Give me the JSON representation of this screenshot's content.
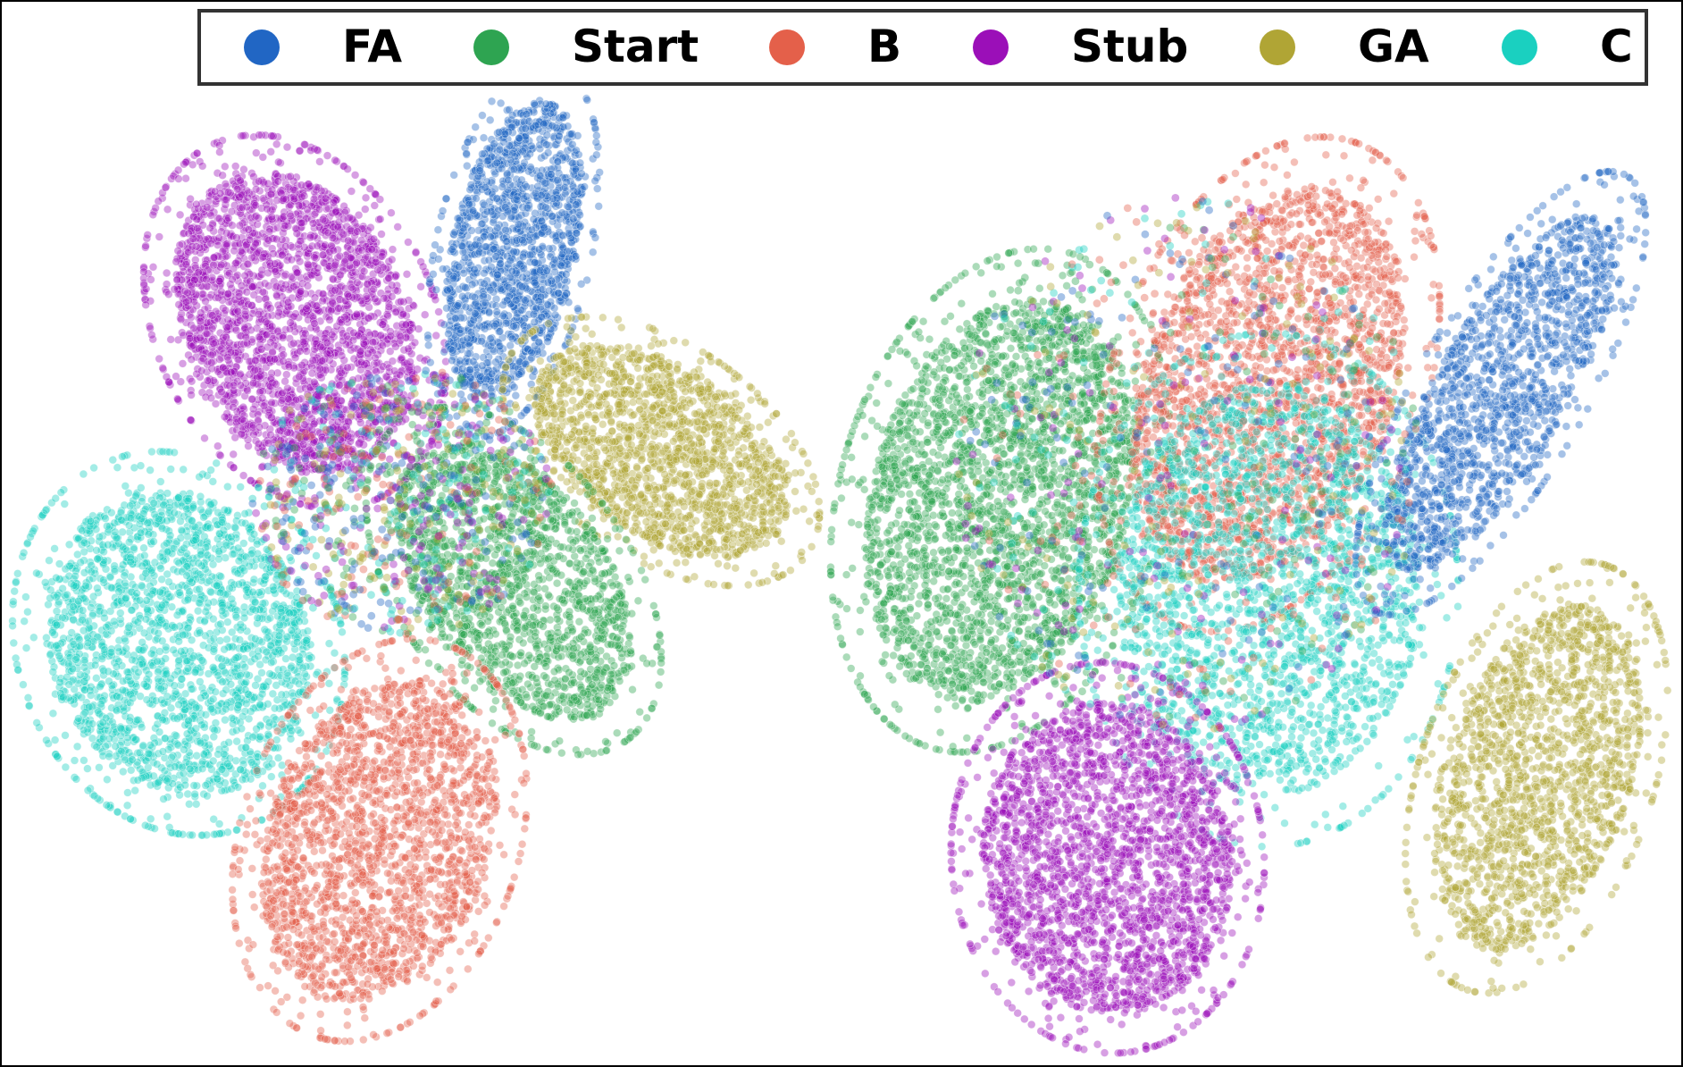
{
  "chart_data": {
    "type": "scatter",
    "title": "",
    "xlabel": "",
    "ylabel": "",
    "axes_visible": false,
    "grid": false,
    "legend_position": "top",
    "marker_alpha": 0.4,
    "series": [
      {
        "name": "FA",
        "color": "#2166c4"
      },
      {
        "name": "Start",
        "color": "#2ea451"
      },
      {
        "name": "B",
        "color": "#e4604a"
      },
      {
        "name": "Stub",
        "color": "#9b0fb8"
      },
      {
        "name": "GA",
        "color": "#b0a535"
      },
      {
        "name": "C",
        "color": "#1ad0c0"
      }
    ],
    "panels": [
      {
        "name": "left",
        "clusters": [
          {
            "series": "Stub",
            "center": [
              -0.62,
              0.42
            ],
            "count": 2600
          },
          {
            "series": "FA",
            "center": [
              -0.34,
              0.56
            ],
            "count": 1600
          },
          {
            "series": "GA",
            "center": [
              -0.12,
              0.18
            ],
            "count": 1800
          },
          {
            "series": "Start",
            "center": [
              -0.3,
              0.05
            ],
            "count": 1800
          },
          {
            "series": "C",
            "center": [
              -0.78,
              0.02
            ],
            "count": 2200
          },
          {
            "series": "B",
            "center": [
              -0.52,
              -0.42
            ],
            "count": 2200
          }
        ]
      },
      {
        "name": "right",
        "clusters": [
          {
            "series": "Start",
            "center": [
              0.22,
              0.22
            ],
            "count": 3000
          },
          {
            "series": "B",
            "center": [
              0.5,
              0.3
            ],
            "count": 2400
          },
          {
            "series": "C",
            "center": [
              0.6,
              -0.1
            ],
            "count": 2200
          },
          {
            "series": "FA",
            "center": [
              0.82,
              0.3
            ],
            "count": 1600
          },
          {
            "series": "Stub",
            "center": [
              0.36,
              -0.4
            ],
            "count": 2600
          },
          {
            "series": "GA",
            "center": [
              0.9,
              -0.22
            ],
            "count": 1800
          }
        ]
      }
    ]
  }
}
